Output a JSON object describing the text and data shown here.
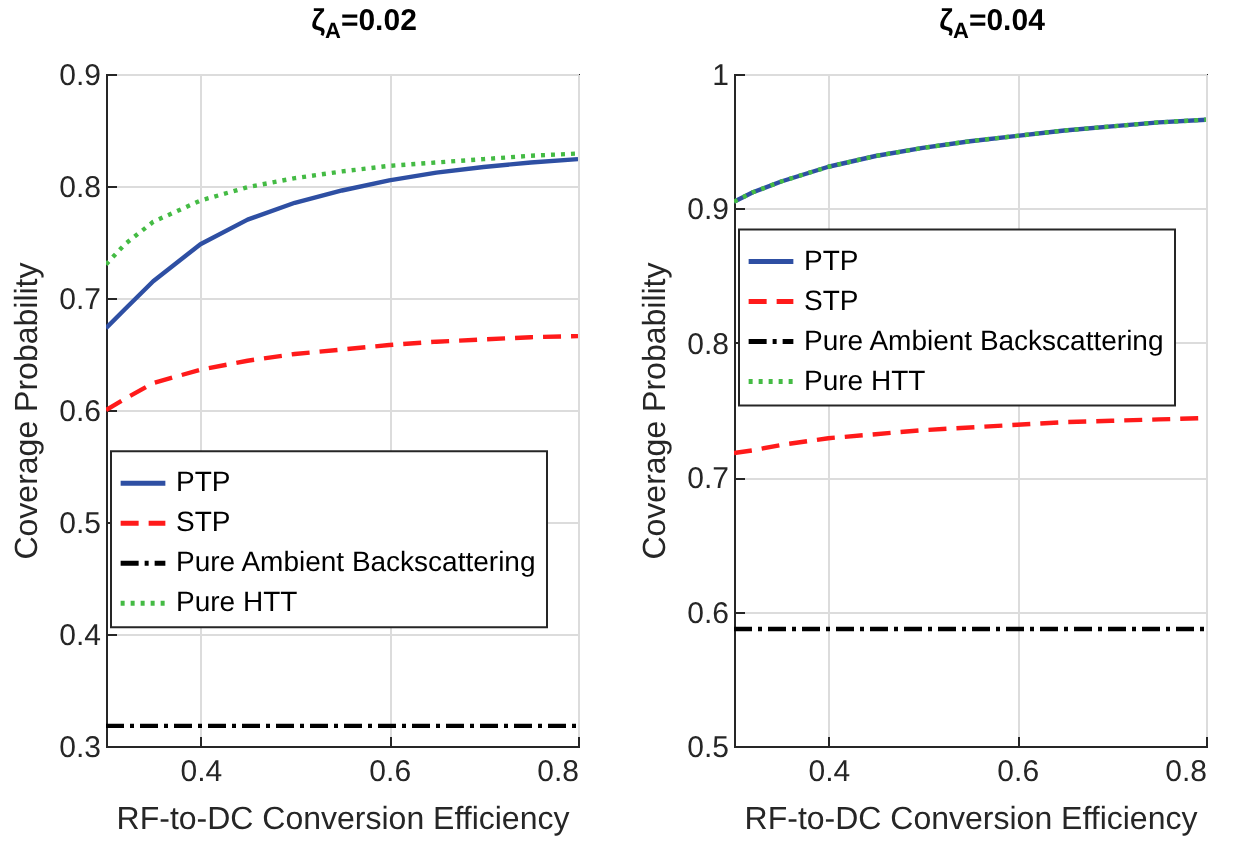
{
  "chart_data": [
    {
      "type": "line",
      "title": "ζ$_{A}$=0.02",
      "xlabel": "RF-to-DC Conversion Efficiency",
      "ylabel": "Coverage Probability",
      "xlim": [
        0.3,
        0.8
      ],
      "xticks": [
        0.4,
        0.6,
        0.8
      ],
      "ylim": [
        0.3,
        0.9
      ],
      "yticks": [
        0.3,
        0.4,
        0.5,
        0.6,
        0.7,
        0.8,
        0.9
      ],
      "grid": true,
      "legend": "left",
      "marker": "none",
      "x": [
        0.3,
        0.32,
        0.35,
        0.4,
        0.45,
        0.5,
        0.55,
        0.6,
        0.65,
        0.7,
        0.75,
        0.8
      ],
      "series": [
        {
          "name": "PTP",
          "color": "#2e4fa3",
          "line_style": "solid",
          "values": [
            0.673,
            0.69,
            0.715,
            0.748,
            0.77,
            0.785,
            0.796,
            0.805,
            0.812,
            0.817,
            0.821,
            0.824
          ]
        },
        {
          "name": "STP",
          "color": "#ff1a1a",
          "line_style": "dashed",
          "values": [
            0.6,
            0.61,
            0.624,
            0.636,
            0.644,
            0.65,
            0.654,
            0.658,
            0.661,
            0.663,
            0.665,
            0.666
          ]
        },
        {
          "name": "Pure Ambient Backscattering",
          "color": "#000000",
          "line_style": "dashdot",
          "values": [
            0.318,
            0.318,
            0.318,
            0.318,
            0.318,
            0.318,
            0.318,
            0.318,
            0.318,
            0.318,
            0.318,
            0.318
          ]
        },
        {
          "name": "Pure HTT",
          "color": "#44bb44",
          "line_style": "dotted",
          "values": [
            0.73,
            0.748,
            0.768,
            0.787,
            0.799,
            0.807,
            0.813,
            0.818,
            0.821,
            0.824,
            0.827,
            0.829
          ]
        }
      ]
    },
    {
      "type": "line",
      "title": "ζ$_{A}$=0.04",
      "xlabel": "RF-to-DC Conversion Efficiency",
      "ylabel": "Coverage Probability",
      "xlim": [
        0.3,
        0.8
      ],
      "xticks": [
        0.4,
        0.6,
        0.8
      ],
      "ylim": [
        0.5,
        1
      ],
      "yticks": [
        0.5,
        0.6,
        0.7,
        0.8,
        0.9,
        {
          "value": 1,
          "label": "1"
        }
      ],
      "grid": true,
      "legend": "top",
      "marker": "none",
      "x": [
        0.3,
        0.32,
        0.35,
        0.4,
        0.45,
        0.5,
        0.55,
        0.6,
        0.65,
        0.7,
        0.75,
        0.8
      ],
      "series": [
        {
          "name": "PTP",
          "color": "#2e4fa3",
          "line_style": "solid",
          "values": [
            0.905,
            0.912,
            0.92,
            0.931,
            0.939,
            0.945,
            0.95,
            0.954,
            0.958,
            0.961,
            0.964,
            0.966
          ]
        },
        {
          "name": "STP",
          "color": "#ff1a1a",
          "line_style": "dashed",
          "values": [
            0.718,
            0.72,
            0.724,
            0.729,
            0.732,
            0.735,
            0.737,
            0.739,
            0.741,
            0.742,
            0.743,
            0.744
          ]
        },
        {
          "name": "Pure Ambient Backscattering",
          "color": "#000000",
          "line_style": "dashdot",
          "values": [
            0.587,
            0.587,
            0.587,
            0.587,
            0.587,
            0.587,
            0.587,
            0.587,
            0.587,
            0.587,
            0.587,
            0.587
          ]
        },
        {
          "name": "Pure HTT",
          "color": "#44bb44",
          "line_style": "dotted",
          "values": [
            0.905,
            0.912,
            0.92,
            0.931,
            0.939,
            0.945,
            0.95,
            0.954,
            0.958,
            0.961,
            0.964,
            0.966
          ]
        }
      ]
    }
  ]
}
